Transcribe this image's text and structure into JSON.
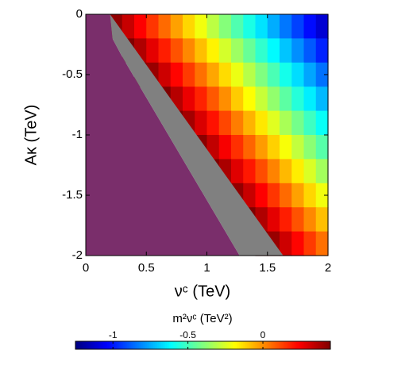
{
  "chart_data": {
    "type": "heatmap",
    "x_label": "νᶜ (TeV)",
    "y_label": "Aκ (TeV)",
    "colorbar_label": "m²νᶜ (TeV²)",
    "colormap": "jet",
    "x": [
      0.05,
      0.15,
      0.25,
      0.35,
      0.45,
      0.55,
      0.65,
      0.75,
      0.85,
      0.95,
      1.05,
      1.15,
      1.25,
      1.35,
      1.45,
      1.55,
      1.65,
      1.75,
      1.85,
      1.95
    ],
    "y": [
      -0.1,
      -0.3,
      -0.5,
      -0.7,
      -0.9,
      -1.1,
      -1.3,
      -1.5,
      -1.7,
      -1.9
    ],
    "z": [
      [
        null,
        0.51,
        0.42,
        0.33,
        0.24,
        0.15,
        0.06,
        -0.03,
        -0.12,
        -0.21,
        -0.3,
        -0.39,
        -0.48,
        -0.57,
        -0.66,
        -0.75,
        -0.84,
        -0.93,
        -1.02,
        -1.11
      ],
      [
        null,
        null,
        null,
        0.46,
        0.37,
        0.28,
        0.19,
        0.1,
        0.01,
        -0.08,
        -0.17,
        -0.26,
        -0.35,
        -0.44,
        -0.53,
        -0.62,
        -0.71,
        -0.8,
        -0.89,
        -0.98
      ],
      [
        null,
        null,
        null,
        null,
        0.5,
        0.41,
        0.32,
        0.23,
        0.14,
        0.05,
        -0.04,
        -0.13,
        -0.22,
        -0.31,
        -0.4,
        -0.49,
        -0.58,
        -0.67,
        -0.76,
        -0.85
      ],
      [
        null,
        null,
        null,
        null,
        null,
        null,
        0.45,
        0.36,
        0.27,
        0.18,
        0.09,
        0,
        -0.1,
        -0.19,
        -0.28,
        -0.37,
        -0.46,
        -0.55,
        -0.64,
        -0.73
      ],
      [
        null,
        null,
        null,
        null,
        null,
        null,
        null,
        0.48,
        0.39,
        0.3,
        0.21,
        0.12,
        0.03,
        -0.06,
        -0.15,
        -0.24,
        -0.33,
        -0.42,
        -0.51,
        -0.6
      ],
      [
        null,
        null,
        null,
        null,
        null,
        null,
        null,
        null,
        null,
        0.43,
        0.34,
        0.25,
        0.16,
        0.07,
        -0.02,
        -0.11,
        -0.2,
        -0.29,
        -0.38,
        -0.47
      ],
      [
        null,
        null,
        null,
        null,
        null,
        null,
        null,
        null,
        null,
        null,
        0.47,
        0.38,
        0.29,
        0.2,
        0.11,
        0.02,
        -0.07,
        -0.16,
        -0.25,
        -0.34
      ],
      [
        null,
        null,
        null,
        null,
        null,
        null,
        null,
        null,
        null,
        null,
        null,
        null,
        0.42,
        0.33,
        0.24,
        0.15,
        0.06,
        -0.03,
        -0.12,
        -0.21
      ],
      [
        null,
        null,
        null,
        null,
        null,
        null,
        null,
        null,
        null,
        null,
        null,
        null,
        null,
        0.46,
        0.37,
        0.28,
        0.19,
        0.1,
        0.01,
        -0.08
      ],
      [
        null,
        null,
        null,
        null,
        null,
        null,
        null,
        null,
        null,
        null,
        null,
        null,
        null,
        null,
        0.5,
        0.41,
        0.32,
        0.23,
        0.14,
        0.05
      ]
    ],
    "regions": [
      {
        "color": "#7a2e6b",
        "x": [
          0,
          0.2,
          0.22,
          0.3,
          1.27,
          0
        ],
        "y": [
          0,
          0,
          -0.2,
          -0.35,
          -2,
          -2
        ]
      },
      {
        "color": "#808080",
        "x": [
          0.2,
          1.63,
          1.27,
          0.3,
          0.22
        ],
        "y": [
          0,
          -2,
          -2,
          -0.35,
          -0.2
        ]
      }
    ],
    "xlim": [
      0,
      2
    ],
    "xticks": [
      0,
      0.5,
      1,
      1.5,
      2
    ],
    "ylim": [
      -2,
      0
    ],
    "yticks": [
      0,
      -0.5,
      -1,
      -1.5,
      -2
    ],
    "clim": [
      -1.25,
      0.45
    ],
    "cticks": [
      -1,
      -0.5,
      0
    ]
  }
}
